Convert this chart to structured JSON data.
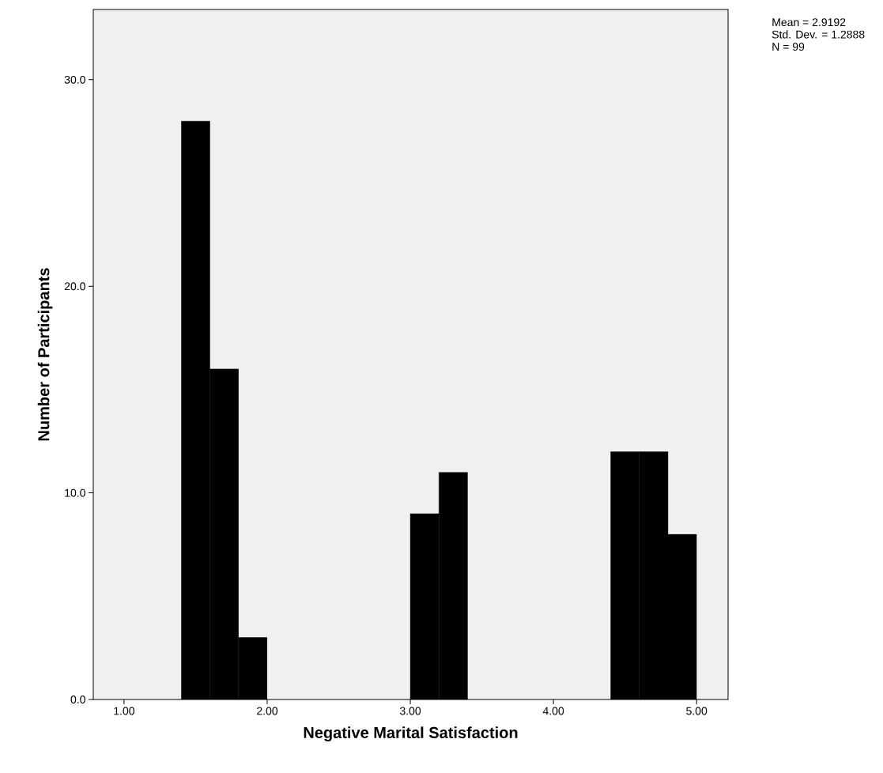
{
  "chart_data": {
    "type": "histogram",
    "xlabel": "Negative Marital Satisfaction",
    "ylabel": "Number of Participants",
    "bins": [
      1.4,
      1.6,
      1.8,
      2.0,
      2.2,
      2.4,
      2.6,
      2.8,
      3.0,
      3.2,
      3.4,
      3.6,
      3.8,
      4.0,
      4.2,
      4.4,
      4.6,
      4.8,
      5.0
    ],
    "values": [
      28,
      16,
      3,
      0,
      0,
      0,
      0,
      0,
      9,
      11,
      0,
      0,
      0,
      0,
      0,
      12,
      12,
      8
    ],
    "color": "#000000",
    "xlim": [
      0.785,
      5.22
    ],
    "ylim": [
      0,
      33.4
    ],
    "xticks": [
      {
        "value": 1,
        "label": "1.00"
      },
      {
        "value": 2,
        "label": "2.00"
      },
      {
        "value": 3,
        "label": "3.00"
      },
      {
        "value": 4,
        "label": "4.00"
      },
      {
        "value": 5,
        "label": "5.00"
      }
    ],
    "yticks": [
      {
        "value": 0,
        "label": "0.0"
      },
      {
        "value": 10,
        "label": "10.0"
      },
      {
        "value": 20,
        "label": "20.0"
      },
      {
        "value": 30,
        "label": "30.0"
      }
    ],
    "annotations": [
      "Mean = 2.9192",
      "Std. Dev. = 1.2888",
      "N = 99"
    ]
  }
}
